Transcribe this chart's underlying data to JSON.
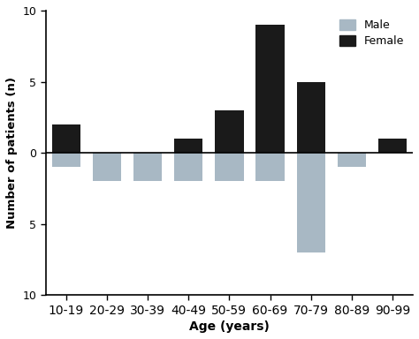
{
  "categories": [
    "10-19",
    "20-29",
    "30-39",
    "40-49",
    "50-59",
    "60-69",
    "70-79",
    "80-89",
    "90-99"
  ],
  "female": [
    2,
    0,
    0,
    1,
    3,
    9,
    5,
    0,
    1
  ],
  "male": [
    -1,
    -2,
    -2,
    -2,
    -2,
    -2,
    -7,
    -1,
    0
  ],
  "female_color": "#1a1a1a",
  "male_color": "#a8b8c4",
  "ylim": [
    -10,
    10
  ],
  "yticks": [
    -10,
    -5,
    0,
    5,
    10
  ],
  "yticklabels": [
    "10",
    "5",
    "0",
    "5",
    "10"
  ],
  "xlabel": "Age (years)",
  "ylabel": "Number of patients (n)",
  "bar_width": 0.7,
  "background_color": "#ffffff",
  "legend_male": "Male",
  "legend_female": "Female",
  "figsize": [
    4.74,
    3.84
  ],
  "dpi": 100
}
